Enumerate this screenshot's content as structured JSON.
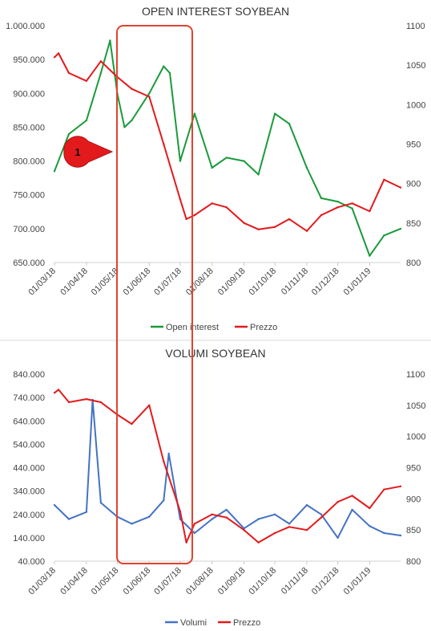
{
  "chart_data": [
    {
      "type": "line",
      "title": "OPEN INTEREST SOYBEAN",
      "x_tick_labels": [
        "01/03/18",
        "01/04/18",
        "01/05/18",
        "01/06/18",
        "01/07/18",
        "01/08/18",
        "01/09/18",
        "01/10/18",
        "01/11/18",
        "01/12/18",
        "01/01/19"
      ],
      "y_left_ticks": [
        "1.000.000",
        "950.000",
        "900.000",
        "850.000",
        "800.000",
        "750.000",
        "700.000",
        "650.000"
      ],
      "y_left_lim": [
        650000,
        1000000
      ],
      "y_right_ticks": [
        "1100",
        "1050",
        "1000",
        "950",
        "900",
        "850",
        "800"
      ],
      "y_right_lim": [
        800,
        1100
      ],
      "grid": false,
      "legend_position": "bottom",
      "series": [
        {
          "name": "Open interest",
          "axis": "left",
          "color": "#1a9a3a",
          "x": [
            "01/03/18",
            "15/03/18",
            "01/04/18",
            "15/04/18",
            "24/04/18",
            "01/05/18",
            "08/05/18",
            "15/05/18",
            "01/06/18",
            "15/06/18",
            "21/06/18",
            "01/07/18",
            "15/07/18",
            "01/08/18",
            "15/08/18",
            "01/09/18",
            "15/09/18",
            "01/10/18",
            "15/10/18",
            "01/11/18",
            "15/11/18",
            "01/12/18",
            "15/12/18",
            "01/01/19",
            "15/01/19",
            "31/01/19"
          ],
          "values": [
            785000,
            840000,
            860000,
            930000,
            978000,
            900000,
            850000,
            860000,
            900000,
            940000,
            930000,
            800000,
            870000,
            790000,
            805000,
            800000,
            780000,
            870000,
            855000,
            790000,
            745000,
            740000,
            730000,
            660000,
            690000,
            700000
          ]
        },
        {
          "name": "Prezzo",
          "axis": "right",
          "color": "#e31a1c",
          "x": [
            "01/03/18",
            "05/03/18",
            "15/03/18",
            "01/04/18",
            "15/04/18",
            "01/05/18",
            "15/05/18",
            "01/06/18",
            "15/06/18",
            "01/07/18",
            "07/07/18",
            "15/07/18",
            "01/08/18",
            "15/08/18",
            "01/09/18",
            "15/09/18",
            "01/10/18",
            "15/10/18",
            "01/11/18",
            "15/11/18",
            "01/12/18",
            "15/12/18",
            "01/01/19",
            "15/01/19",
            "31/01/19"
          ],
          "values": [
            1060,
            1065,
            1040,
            1030,
            1055,
            1035,
            1020,
            1010,
            950,
            880,
            855,
            860,
            875,
            870,
            850,
            842,
            845,
            855,
            840,
            860,
            870,
            875,
            865,
            905,
            895
          ]
        }
      ],
      "annotation": {
        "label": "1"
      }
    },
    {
      "type": "line",
      "title": "VOLUMI SOYBEAN",
      "x_tick_labels": [
        "01/03/18",
        "01/04/18",
        "01/05/18",
        "01/06/18",
        "01/07/18",
        "01/08/18",
        "01/09/18",
        "01/10/18",
        "01/11/18",
        "01/12/18",
        "01/01/19"
      ],
      "y_left_ticks": [
        "840.000",
        "740.000",
        "640.000",
        "540.000",
        "440.000",
        "340.000",
        "240.000",
        "140.000",
        "40.000"
      ],
      "y_left_lim": [
        40000,
        840000
      ],
      "y_right_ticks": [
        "1100",
        "1050",
        "1000",
        "950",
        "900",
        "850",
        "800"
      ],
      "y_right_lim": [
        800,
        1100
      ],
      "grid": false,
      "legend_position": "bottom",
      "series": [
        {
          "name": "Volumi",
          "axis": "left",
          "color": "#4472c4",
          "x": [
            "01/03/18",
            "15/03/18",
            "01/04/18",
            "07/04/18",
            "15/04/18",
            "01/05/18",
            "15/05/18",
            "01/06/18",
            "15/06/18",
            "20/06/18",
            "01/07/18",
            "15/07/18",
            "01/08/18",
            "15/08/18",
            "01/09/18",
            "15/09/18",
            "01/10/18",
            "15/10/18",
            "01/11/18",
            "15/11/18",
            "01/12/18",
            "15/12/18",
            "01/01/19",
            "15/01/19",
            "31/01/19"
          ],
          "values": [
            280000,
            220000,
            250000,
            730000,
            290000,
            230000,
            200000,
            230000,
            300000,
            500000,
            220000,
            160000,
            220000,
            260000,
            180000,
            220000,
            240000,
            200000,
            280000,
            240000,
            140000,
            260000,
            190000,
            160000,
            150000
          ]
        },
        {
          "name": "Prezzo",
          "axis": "right",
          "color": "#e31a1c",
          "x": [
            "01/03/18",
            "05/03/18",
            "15/03/18",
            "01/04/18",
            "15/04/18",
            "01/05/18",
            "15/05/18",
            "01/06/18",
            "15/06/18",
            "01/07/18",
            "07/07/18",
            "15/07/18",
            "01/08/18",
            "15/08/18",
            "01/09/18",
            "15/09/18",
            "01/10/18",
            "15/10/18",
            "01/11/18",
            "15/11/18",
            "01/12/18",
            "15/12/18",
            "01/01/19",
            "15/01/19",
            "31/01/19"
          ],
          "values": [
            1070,
            1075,
            1055,
            1060,
            1055,
            1035,
            1020,
            1050,
            960,
            880,
            830,
            860,
            875,
            870,
            850,
            830,
            845,
            855,
            850,
            870,
            895,
            905,
            885,
            915,
            920
          ]
        }
      ]
    }
  ]
}
